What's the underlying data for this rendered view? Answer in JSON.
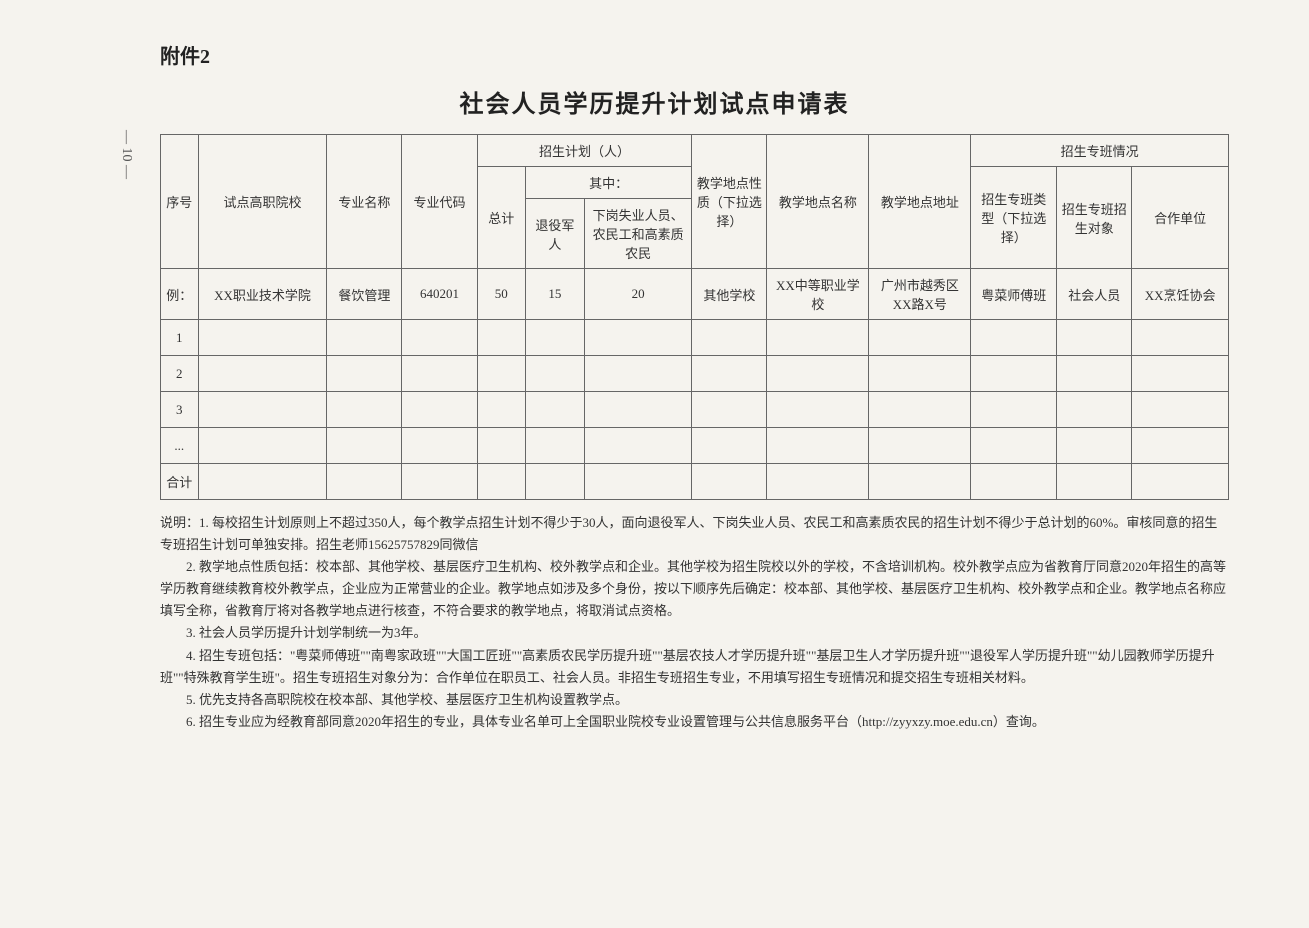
{
  "page_number": "— 10 —",
  "attachment_label": "附件2",
  "title": "社会人员学历提升计划试点申请表",
  "headers": {
    "seq": "序号",
    "school": "试点高职院校",
    "major_name": "专业名称",
    "major_code": "专业代码",
    "plan_group": "招生计划（人）",
    "total": "总计",
    "of_which": "其中：",
    "veteran": "退役军人",
    "unemployed": "下岗失业人员、农民工和高素质农民",
    "site_nature": "教学地点性质（下拉选择）",
    "site_name": "教学地点名称",
    "site_addr": "教学地点地址",
    "class_group": "招生专班情况",
    "class_type": "招生专班类型（下拉选择）",
    "target": "招生专班招生对象",
    "partner": "合作单位"
  },
  "example_row": {
    "seq": "例：",
    "school": "XX职业技术学院",
    "major_name": "餐饮管理",
    "major_code": "640201",
    "total": "50",
    "veteran": "15",
    "unemployed": "20",
    "site_nature": "其他学校",
    "site_name": "XX中等职业学校",
    "site_addr": "广州市越秀区XX路X号",
    "class_type": "粤菜师傅班",
    "target": "社会人员",
    "partner": "XX烹饪协会"
  },
  "blank_rows": [
    "1",
    "2",
    "3",
    "...",
    "合计"
  ],
  "notes": {
    "prefix": "说明：",
    "item1": "1. 每校招生计划原则上不超过350人，每个教学点招生计划不得少于30人，面向退役军人、下岗失业人员、农民工和高素质农民的招生计划不得少于总计划的60%。审核同意的招生专班招生计划可单独安排。招生老师15625757829同微信",
    "item2": "2. 教学地点性质包括：校本部、其他学校、基层医疗卫生机构、校外教学点和企业。其他学校为招生院校以外的学校，不含培训机构。校外教学点应为省教育厅同意2020年招生的高等学历教育继续教育校外教学点，企业应为正常营业的企业。教学地点如涉及多个身份，按以下顺序先后确定：校本部、其他学校、基层医疗卫生机构、校外教学点和企业。教学地点名称应填写全称，省教育厅将对各教学地点进行核查，不符合要求的教学地点，将取消试点资格。",
    "item3": "3. 社会人员学历提升计划学制统一为3年。",
    "item4": "4. 招生专班包括：\"粤菜师傅班\"\"南粤家政班\"\"大国工匠班\"\"高素质农民学历提升班\"\"基层农技人才学历提升班\"\"基层卫生人才学历提升班\"\"退役军人学历提升班\"\"幼儿园教师学历提升班\"\"特殊教育学生班\"。招生专班招生对象分为：合作单位在职员工、社会人员。非招生专班招生专业，不用填写招生专班情况和提交招生专班相关材料。",
    "item5": "5. 优先支持各高职院校在校本部、其他学校、基层医疗卫生机构设置教学点。",
    "item6": "6. 招生专业应为经教育部同意2020年招生的专业，具体专业名单可上全国职业院校专业设置管理与公共信息服务平台（http://zyyxzy.moe.edu.cn）查询。"
  }
}
